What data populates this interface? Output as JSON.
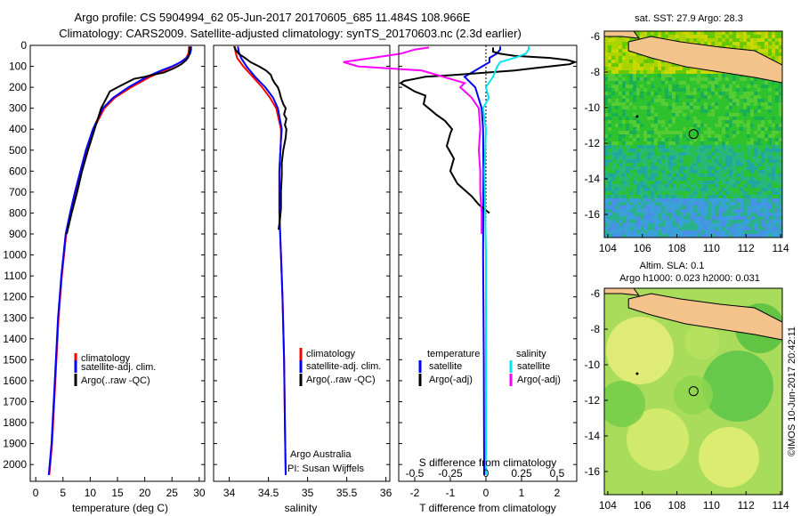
{
  "header": {
    "line1": "Argo profile: CS 5904994_62 05-Jun-2017 20170605_685 11.484S 108.966E",
    "line2": "Climatology: CARS2009. Satellite-adjusted climatology: synTS_20170603.nc (2.3d earlier)"
  },
  "side_credit": "©IMOS 10-Jun-2017 20:42:11",
  "colors": {
    "climatology": "#ff0000",
    "satellite": "#0000ff",
    "argo": "#000000",
    "sat_salinity": "#00e5ee",
    "argo_salinity": "#ff00ff",
    "land": "#f4c38c"
  },
  "chart_data": [
    {
      "id": "temperature",
      "type": "line",
      "xlabel": "temperature (deg C)",
      "xlim": [
        -1,
        31
      ],
      "ylim": [
        2080,
        0
      ],
      "xticks": [
        0,
        5,
        10,
        15,
        20,
        25,
        30
      ],
      "yticks": [
        0,
        100,
        200,
        300,
        400,
        500,
        600,
        700,
        800,
        900,
        1000,
        1100,
        1200,
        1300,
        1400,
        1500,
        1600,
        1700,
        1800,
        1900,
        2000
      ],
      "legend": [
        "climatology",
        "satellite-adj. clim.",
        "Argo(..raw -QC)"
      ],
      "series": [
        {
          "name": "climatology",
          "color": "#ff0000",
          "depth": [
            2050,
            1900,
            1600,
            1300,
            1100,
            900,
            800,
            700,
            600,
            500,
            400,
            300,
            250,
            200,
            150,
            120,
            100,
            80,
            60,
            40,
            20,
            5
          ],
          "values": [
            2.5,
            3.0,
            3.6,
            4.2,
            4.8,
            5.6,
            6.4,
            7.3,
            8.3,
            9.3,
            10.6,
            12.6,
            14.5,
            17.5,
            21.0,
            23.5,
            25.2,
            26.6,
            27.6,
            28.0,
            28.1,
            28.1
          ]
        },
        {
          "name": "satellite-adj. clim.",
          "color": "#0000ff",
          "depth": [
            2050,
            1900,
            1600,
            1300,
            1100,
            900,
            800,
            700,
            600,
            500,
            400,
            300,
            250,
            200,
            150,
            120,
            100,
            80,
            60,
            40,
            20,
            5
          ],
          "values": [
            2.4,
            2.9,
            3.5,
            4.1,
            4.7,
            5.5,
            6.3,
            7.2,
            8.2,
            9.2,
            10.5,
            12.3,
            14.2,
            17.0,
            20.4,
            23.0,
            25.0,
            26.6,
            27.7,
            28.3,
            28.5,
            28.5
          ]
        },
        {
          "name": "Argo(..raw -QC)",
          "color": "#000000",
          "depth": [
            900,
            800,
            700,
            600,
            500,
            400,
            300,
            250,
            220,
            200,
            160,
            150,
            140,
            130,
            110,
            100,
            90,
            80,
            70,
            60,
            50,
            40,
            20,
            5
          ],
          "values": [
            5.7,
            6.6,
            7.6,
            8.5,
            9.6,
            10.8,
            12.0,
            13.0,
            13.6,
            15.0,
            18.0,
            20.0,
            21.5,
            23.5,
            25.3,
            26.0,
            26.7,
            27.2,
            27.6,
            27.9,
            28.1,
            28.2,
            28.3,
            28.3
          ]
        }
      ]
    },
    {
      "id": "salinity",
      "type": "line",
      "xlabel": "salinity",
      "xlim": [
        33.8,
        36.05
      ],
      "ylim": [
        2080,
        0
      ],
      "xticks": [
        34,
        34.5,
        35,
        35.5,
        36
      ],
      "legend": [
        "climatology",
        "satellite-adj. clim.",
        "Argo(..raw -QC)"
      ],
      "annotations": [
        "Argo Australia",
        "PI: Susan Wijffels"
      ],
      "series": [
        {
          "name": "climatology",
          "color": "#ff0000",
          "depth": [
            2050,
            1800,
            1500,
            1200,
            1000,
            800,
            600,
            450,
            400,
            300,
            250,
            200,
            150,
            100,
            60,
            30,
            5
          ],
          "values": [
            34.72,
            34.71,
            34.7,
            34.68,
            34.66,
            34.64,
            34.64,
            34.66,
            34.66,
            34.6,
            34.52,
            34.42,
            34.3,
            34.18,
            34.1,
            34.08,
            34.07
          ]
        },
        {
          "name": "satellite-adj. clim.",
          "color": "#0000ff",
          "depth": [
            2050,
            1800,
            1500,
            1200,
            1000,
            800,
            600,
            450,
            400,
            300,
            250,
            200,
            150,
            100,
            60,
            30,
            5
          ],
          "values": [
            34.72,
            34.71,
            34.7,
            34.68,
            34.66,
            34.64,
            34.64,
            34.66,
            34.67,
            34.62,
            34.56,
            34.46,
            34.33,
            34.22,
            34.15,
            34.12,
            34.11
          ]
        },
        {
          "name": "Argo(..raw -QC)",
          "color": "#000000",
          "depth": [
            880,
            820,
            780,
            700,
            620,
            560,
            500,
            440,
            400,
            380,
            350,
            330,
            300,
            280,
            250,
            220,
            200,
            180,
            160,
            140,
            120,
            100,
            80,
            60,
            40,
            20,
            5
          ],
          "values": [
            34.63,
            34.65,
            34.66,
            34.66,
            34.67,
            34.67,
            34.69,
            34.72,
            34.73,
            34.71,
            34.73,
            34.7,
            34.72,
            34.69,
            34.66,
            34.64,
            34.62,
            34.58,
            34.55,
            34.53,
            34.47,
            34.38,
            34.27,
            34.2,
            34.12,
            34.08,
            34.06
          ]
        }
      ]
    },
    {
      "id": "difference",
      "type": "line",
      "xlabel": "T difference from climatology",
      "xlabel_top": "S difference from climatology",
      "xlim": [
        -2.45,
        2.55
      ],
      "ylim": [
        2080,
        0
      ],
      "xticks": [
        -2,
        -1,
        0,
        1,
        2
      ],
      "xticks_top": [
        "-0.5",
        "-0.25",
        "0",
        "0.25",
        "0.5"
      ],
      "legend_titles": [
        "temperature",
        "salinity"
      ],
      "legend": [
        "satellite",
        "Argo(-adj)",
        "satellite",
        "Argo(-adj)"
      ],
      "series": [
        {
          "name": "satellite",
          "color": "#0000ff",
          "depth": [
            2050,
            1500,
            1000,
            600,
            400,
            300,
            200,
            150,
            110,
            80,
            60,
            40,
            20,
            5
          ],
          "values": [
            -0.05,
            -0.06,
            -0.08,
            -0.07,
            -0.08,
            -0.12,
            -0.3,
            -0.6,
            -0.2,
            0.1,
            0.1,
            0.3,
            0.4,
            0.4
          ]
        },
        {
          "name": "Argo(-adj)",
          "color": "#000000",
          "depth": [
            800,
            760,
            720,
            660,
            600,
            540,
            480,
            420,
            400,
            360,
            330,
            280,
            240,
            220,
            200,
            180,
            170,
            160,
            150,
            140,
            130,
            120,
            110,
            100,
            90,
            80,
            70,
            60,
            50,
            40,
            30,
            20,
            10
          ],
          "values": [
            0.1,
            -0.2,
            -0.4,
            -0.8,
            -1.0,
            -0.9,
            -1.1,
            -1.0,
            -0.95,
            -1.15,
            -1.4,
            -1.75,
            -1.7,
            -2.0,
            -2.2,
            -2.4,
            -2.3,
            -2.0,
            -1.7,
            -0.8,
            0.0,
            0.8,
            1.3,
            1.8,
            2.35,
            2.5,
            2.3,
            1.8,
            0.8,
            0.4,
            0.2,
            0.2,
            0.2
          ]
        },
        {
          "name": "satellite",
          "color": "#00e5ee",
          "depth": [
            2050,
            1500,
            1000,
            600,
            400,
            300,
            250,
            200,
            150,
            100,
            80,
            60,
            40,
            20,
            5
          ],
          "values": [
            0.0,
            0.0,
            0.0,
            -0.01,
            0.0,
            -0.02,
            0.02,
            0.0,
            0.05,
            0.08,
            0.1,
            0.2,
            0.28,
            0.3,
            0.3
          ]
        },
        {
          "name": "Argo(-adj)",
          "color": "#ff00ff",
          "depth": [
            900,
            800,
            700,
            600,
            500,
            400,
            300,
            250,
            200,
            180,
            150,
            120,
            100,
            80,
            60,
            40,
            20,
            10
          ],
          "values": [
            -0.03,
            -0.03,
            -0.04,
            -0.04,
            -0.05,
            -0.04,
            -0.05,
            -0.1,
            -0.18,
            -0.15,
            -0.3,
            -0.45,
            -0.9,
            -1.0,
            -0.8,
            -0.6,
            -0.5,
            -0.4
          ]
        }
      ]
    },
    {
      "id": "sst_map",
      "type": "heatmap",
      "title": "sat. SST: 27.9 Argo: 28.3",
      "xlim": [
        103.8,
        114.1
      ],
      "ylim": [
        -17.3,
        -5.7
      ],
      "xticks": [
        104,
        106,
        108,
        110,
        112,
        114
      ],
      "yticks": [
        -6,
        -8,
        -10,
        -12,
        -14,
        -16
      ],
      "float_position": {
        "lon": 108.966,
        "lat": -11.484
      }
    },
    {
      "id": "sla_map",
      "type": "heatmap",
      "title": "Altim. SLA: 0.1",
      "subtitle": "Argo h1000: 0.023 h2000: 0.031",
      "xlim": [
        103.8,
        114.1
      ],
      "ylim": [
        -17.3,
        -5.7
      ],
      "xticks": [
        104,
        106,
        108,
        110,
        112,
        114
      ],
      "yticks": [
        -6,
        -8,
        -10,
        -12,
        -14,
        -16
      ],
      "float_position": {
        "lon": 108.966,
        "lat": -11.484
      }
    }
  ]
}
